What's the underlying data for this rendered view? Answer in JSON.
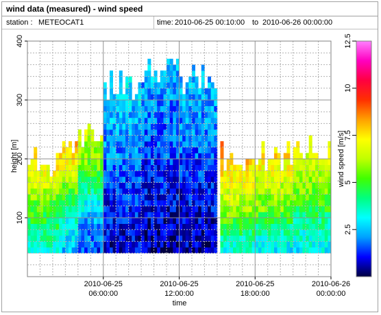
{
  "window": {
    "title": "wind data (measured) - wind speed"
  },
  "info": {
    "station_label": "station :",
    "station_value": "METEOCAT1",
    "time_label": "time:",
    "time_from": "2010-06-25 00:10:00",
    "time_to_word": "to",
    "time_to": "2010-06-26 00:00:00"
  },
  "chart_data": {
    "type": "heatmap",
    "title": "",
    "xlabel": "time",
    "ylabel": "height [m]",
    "colorbar_label": "wind speed [m/s]",
    "xlim": [
      "2010-06-25 00:00:00",
      "2010-06-26 00:00:00"
    ],
    "ylim": [
      0,
      400
    ],
    "x_ticks": [
      {
        "time": "2010-06-25 06:00:00",
        "line1": "2010-06-25",
        "line2": "06:00:00"
      },
      {
        "time": "2010-06-25 12:00:00",
        "line1": "2010-06-25",
        "line2": "12:00:00"
      },
      {
        "time": "2010-06-25 18:00:00",
        "line1": "2010-06-25",
        "line2": "18:00:00"
      },
      {
        "time": "2010-06-26 00:00:00",
        "line1": "2010-06-26",
        "line2": "00:00:00"
      }
    ],
    "y_ticks": [
      "100",
      "200",
      "300",
      "400"
    ],
    "colorbar_range": [
      0,
      12.5
    ],
    "colorbar_ticks": [
      "2.5",
      "5",
      "7.5",
      "10",
      "12.5"
    ],
    "grid": true,
    "colormap": [
      "#000040",
      "#0000ff",
      "#00a0ff",
      "#00ffff",
      "#00ff80",
      "#40ff00",
      "#c0ff00",
      "#ffff00",
      "#ffa000",
      "#ff3000",
      "#ff0040",
      "#ff00c0",
      "#ff80ff"
    ],
    "min_height_m": 40,
    "profiles": [
      {
        "start_hour": 0.0,
        "top_m": 190,
        "mean_speed": [
          3.5,
          4.0,
          4.5,
          5.0,
          5.5,
          6.5,
          7.0,
          7.5
        ]
      },
      {
        "start_hour": 2.5,
        "top_m": 225,
        "mean_speed": [
          2.5,
          3.0,
          3.5,
          4.5,
          5.5,
          6.5,
          7.5,
          8.0
        ]
      },
      {
        "start_hour": 4.0,
        "top_m": 240,
        "mean_speed": [
          1.5,
          2.0,
          2.5,
          3.5,
          4.5,
          5.5,
          6.0,
          6.5
        ]
      },
      {
        "start_hour": 6.0,
        "top_m": 320,
        "mean_speed": [
          0.8,
          1.0,
          1.2,
          1.5,
          2.0,
          2.2,
          2.5,
          3.0
        ]
      },
      {
        "start_hour": 9.0,
        "top_m": 345,
        "mean_speed": [
          0.5,
          0.8,
          1.0,
          1.2,
          1.5,
          1.8,
          2.0,
          2.5
        ]
      },
      {
        "start_hour": 12.0,
        "top_m": 330,
        "mean_speed": [
          0.6,
          0.8,
          1.0,
          1.3,
          1.6,
          2.0,
          2.2,
          2.5
        ]
      },
      {
        "start_hour": 15.0,
        "top_m": 0,
        "mean_speed": []
      },
      {
        "start_hour": 15.2,
        "top_m": 200,
        "mean_speed": [
          3.5,
          4.0,
          5.0,
          6.0,
          6.5,
          7.0,
          7.5,
          8.5
        ]
      },
      {
        "start_hour": 18.0,
        "top_m": 200,
        "mean_speed": [
          3.0,
          3.5,
          4.5,
          5.5,
          6.0,
          6.5,
          7.0,
          7.5
        ]
      },
      {
        "start_hour": 21.0,
        "top_m": 215,
        "mean_speed": [
          3.0,
          3.5,
          4.0,
          5.0,
          5.5,
          6.0,
          6.5,
          7.0
        ]
      }
    ]
  }
}
